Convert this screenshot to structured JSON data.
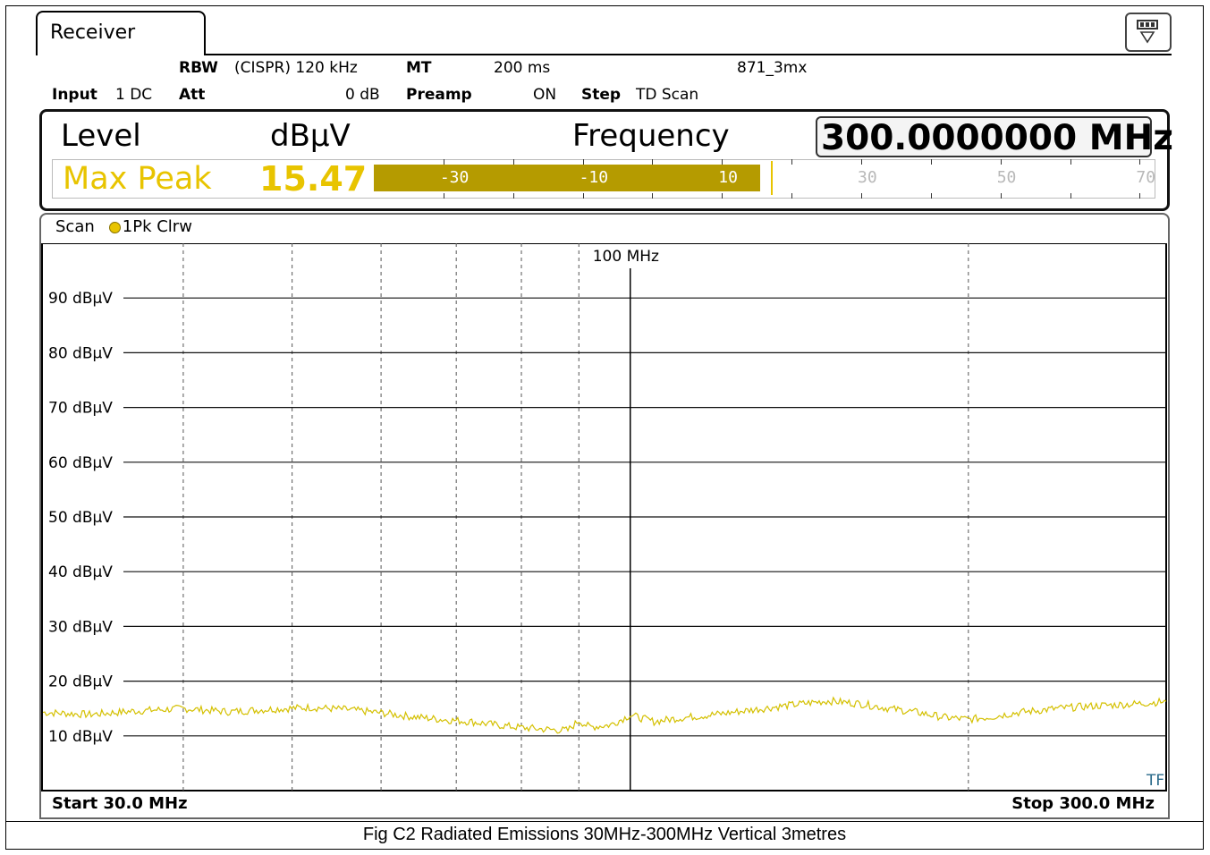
{
  "header": {
    "tab_label": "Receiver",
    "rbw_label": "RBW",
    "rbw_value": "(CISPR) 120 kHz",
    "mt_label": "MT",
    "mt_value": "200 ms",
    "setup_name": "871_3mx",
    "input_label": "Input",
    "input_value": "1 DC",
    "att_label": "Att",
    "att_value": "0 dB",
    "preamp_label": "Preamp",
    "preamp_value": "ON",
    "step_label": "Step",
    "step_value": "TD Scan",
    "menu_icon": "display-config-icon"
  },
  "level_panel": {
    "level_label": "Level",
    "unit_label": "dBµV",
    "frequency_label": "Frequency",
    "frequency_value": "300.0000000 MHz",
    "detector": "Max Peak",
    "level_value": "15.47",
    "level_value_num": 15.47,
    "meter_scale": [
      "-30",
      "-10",
      "10",
      "30",
      "50",
      "70"
    ],
    "meter_min": -40,
    "meter_max": 72,
    "meter_color": "#b59b00",
    "accent_color": "#e8c400"
  },
  "diagram": {
    "title": "Scan",
    "trace_label": "1Pk Clrw",
    "marker_label": "100 MHz",
    "corner_label": "TF",
    "start_label": "Start 30.0 MHz",
    "stop_label": "Stop 300.0 MHz"
  },
  "chart_data": {
    "type": "line",
    "xscale": "log",
    "xlim": [
      30,
      300
    ],
    "ylim": [
      0,
      100
    ],
    "y_ticks": [
      {
        "value": 90,
        "label": "90 dBµV"
      },
      {
        "value": 80,
        "label": "80 dBµV"
      },
      {
        "value": 70,
        "label": "70 dBµV"
      },
      {
        "value": 60,
        "label": "60 dBµV"
      },
      {
        "value": 50,
        "label": "50 dBµV"
      },
      {
        "value": 40,
        "label": "40 dBµV"
      },
      {
        "value": 30,
        "label": "30 dBµV"
      },
      {
        "value": 20,
        "label": "20 dBµV"
      },
      {
        "value": 10,
        "label": "10 dBµV"
      }
    ],
    "x_gridlines_mhz": [
      40,
      50,
      60,
      70,
      80,
      90,
      200
    ],
    "marker_mhz": 100,
    "series": [
      {
        "color": "#d4c000",
        "x": [
          30,
          33,
          36,
          40,
          44,
          48,
          52,
          56,
          60,
          64,
          68,
          72,
          76,
          80,
          84,
          88,
          90,
          92,
          96,
          100,
          105,
          110,
          120,
          130,
          140,
          150,
          160,
          170,
          180,
          190,
          200,
          210,
          220,
          240,
          260,
          280,
          300
        ],
        "y": [
          14.3,
          13.9,
          14.5,
          15.0,
          14.4,
          14.9,
          15.2,
          14.8,
          14.2,
          13.5,
          13.0,
          12.6,
          12.0,
          11.5,
          11.2,
          11.0,
          12.8,
          11.6,
          12.0,
          13.8,
          12.6,
          13.2,
          14.0,
          14.9,
          15.7,
          16.4,
          15.9,
          15.0,
          14.3,
          13.4,
          13.0,
          13.5,
          14.2,
          15.0,
          15.5,
          15.8,
          16.3
        ]
      }
    ]
  },
  "caption": "Fig C2 Radiated Emissions 30MHz-300MHz Vertical 3metres"
}
